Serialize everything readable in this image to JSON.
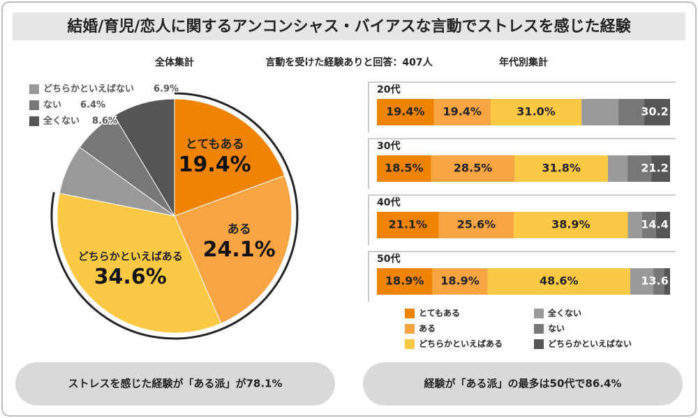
{
  "title": "結婚/育児/恋人に関するアンコンシャス・バイアスな言動でストレスを感じた経験",
  "labels": {
    "left": "全体集計",
    "center": "言動を受けた経験ありと回答：407人",
    "right": "年代別集計"
  },
  "callouts": [
    "ストレスを感じた経験が「ある派」が78.1%",
    "経験が「ある派」の最多は50代で86.4%"
  ],
  "chart_data": [
    {
      "type": "pie",
      "categories": [
        "とてもある",
        "ある",
        "どちらかといえばある",
        "どちらかといえばない",
        "ない",
        "全くない"
      ],
      "values": [
        19.4,
        24.1,
        34.6,
        6.9,
        6.4,
        8.6
      ],
      "value_labels": [
        "19.4%",
        "24.1%",
        "34.6%",
        "6.9%",
        "6.4%",
        "8.6%"
      ],
      "colors": [
        "#f08300",
        "#f8a443",
        "#fdc843",
        "#999999",
        "#777777",
        "#555555"
      ]
    },
    {
      "type": "bar",
      "orientation": "horizontal",
      "stacked": true,
      "categories": [
        "20代",
        "30代",
        "40代",
        "50代"
      ],
      "xlim": [
        0,
        100
      ],
      "series": [
        {
          "name": "とてもある",
          "color": "#f08300",
          "values": [
            19.4,
            18.5,
            21.1,
            18.9
          ],
          "value_labels": [
            "19.4%",
            "18.5%",
            "21.1%",
            "18.9%"
          ]
        },
        {
          "name": "ある",
          "color": "#f8a443",
          "values": [
            19.4,
            28.5,
            25.6,
            18.9
          ],
          "value_labels": [
            "19.4%",
            "28.5%",
            "25.6%",
            "18.9%"
          ]
        },
        {
          "name": "どちらかといえばある",
          "color": "#fdc843",
          "values": [
            31.0,
            31.8,
            38.9,
            48.6
          ],
          "value_labels": [
            "31.0%",
            "31.8%",
            "38.9%",
            "48.6%"
          ]
        },
        {
          "name": "全くない",
          "color": "#999999",
          "values": [
            12.6,
            6.7,
            4.8,
            7.9
          ]
        },
        {
          "name": "ない",
          "color": "#777777",
          "values": [
            8.8,
            8.1,
            4.8,
            3.6
          ]
        },
        {
          "name": "どちらかといえばない",
          "color": "#555555",
          "values": [
            8.8,
            6.4,
            4.8,
            2.1
          ]
        }
      ],
      "negative_totals": [
        30.2,
        21.2,
        14.4,
        13.6
      ]
    }
  ]
}
